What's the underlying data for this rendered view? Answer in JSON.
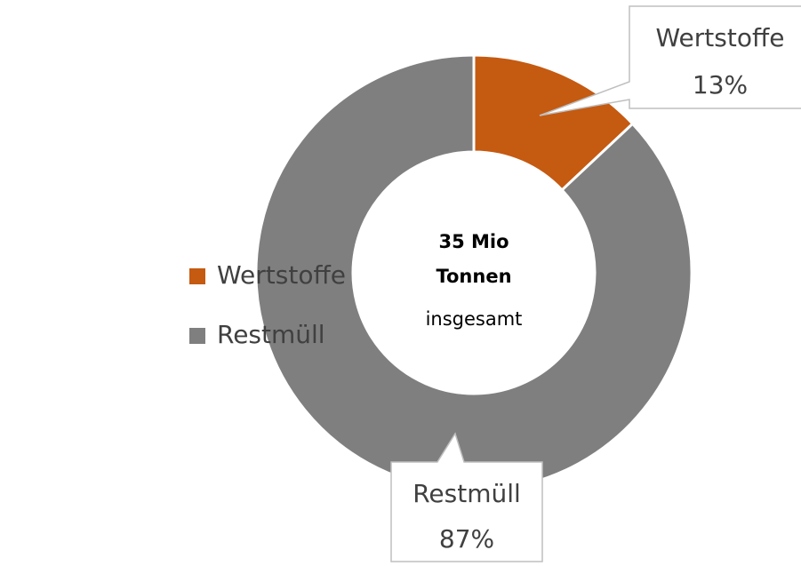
{
  "chart_data": {
    "type": "donut",
    "categories": [
      "Wertstoffe",
      "Restmüll"
    ],
    "values": [
      13,
      87
    ],
    "value_labels": [
      "13%",
      "87%"
    ],
    "colors": [
      "#c55a11",
      "#7f7f7f"
    ],
    "center_label": [
      "35 Mio",
      "Tonnen"
    ],
    "center_sublabel": "insgesamt",
    "legend": "left"
  }
}
